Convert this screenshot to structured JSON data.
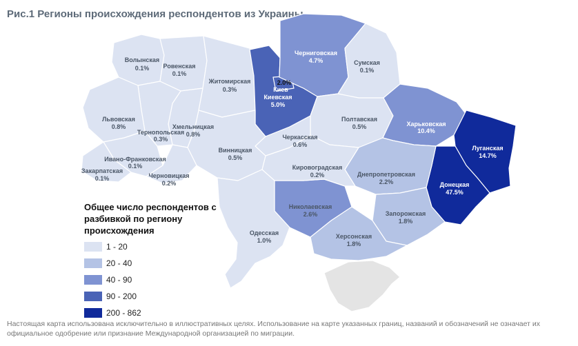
{
  "title": "Рис.1 Регионы происхождения респондентов из Украины",
  "legend": {
    "title": "Общее число респондентов с разбивкой по региону происхождения",
    "items": [
      {
        "label": "1 - 20",
        "color": "#dce3f2"
      },
      {
        "label": "20 - 40",
        "color": "#b4c3e5"
      },
      {
        "label": "40 - 90",
        "color": "#7f93d2"
      },
      {
        "label": "90 - 200",
        "color": "#4a63b6"
      },
      {
        "label": "200 - 862",
        "color": "#102a9b"
      }
    ]
  },
  "regions": {
    "volyn": {
      "name": "Волынская",
      "value": "0.1%"
    },
    "rivne": {
      "name": "Ровенская",
      "value": "0.1%"
    },
    "zhytomyr": {
      "name": "Житомирская",
      "value": "0.3%"
    },
    "chernihiv": {
      "name": "Черниговская",
      "value": "4.7%"
    },
    "sumy": {
      "name": "Сумская",
      "value": "0.1%"
    },
    "kyiv_city": {
      "name": "Киев",
      "value": "2.0%"
    },
    "kyiv": {
      "name": "Киевская",
      "value": "5.0%"
    },
    "lviv": {
      "name": "Львовская",
      "value": "0.8%"
    },
    "ternopil": {
      "name": "Тернопольская",
      "value": "0.3%"
    },
    "khmelnytskyi": {
      "name": "Хмельницкая",
      "value": "0.8%"
    },
    "poltava": {
      "name": "Полтавская",
      "value": "0.5%"
    },
    "kharkiv": {
      "name": "Харьковская",
      "value": "10.4%"
    },
    "luhansk": {
      "name": "Луганская",
      "value": "14.7%"
    },
    "cherkasy": {
      "name": "Черкасская",
      "value": "0.6%"
    },
    "ivano_frankivsk": {
      "name": "Ивано-Франковская",
      "value": "0.1%"
    },
    "vinnytsia": {
      "name": "Винницкая",
      "value": "0.5%"
    },
    "zakarpattia": {
      "name": "Закарпатская",
      "value": "0.1%"
    },
    "chernivtsi": {
      "name": "Черновицкая",
      "value": "0.2%"
    },
    "kirovohrad": {
      "name": "Кировоградская",
      "value": "0.2%"
    },
    "dnipro": {
      "name": "Днепропетровская",
      "value": "2.2%"
    },
    "donetsk": {
      "name": "Донецкая",
      "value": "47.5%"
    },
    "mykolaiv": {
      "name": "Николаевская",
      "value": "2.6%"
    },
    "zaporizhzhia": {
      "name": "Запорожская",
      "value": "1.8%"
    },
    "odesa": {
      "name": "Одесская",
      "value": "1.0%"
    },
    "kherson": {
      "name": "Херсонская",
      "value": "1.8%"
    }
  },
  "disclaimer": "Настоящая карта использована исключительно в иллюстративных целях. Использование на карте указанных границ, названий и обозначений не означает их официальное одобрение или признание Международной организацией по миграции."
}
